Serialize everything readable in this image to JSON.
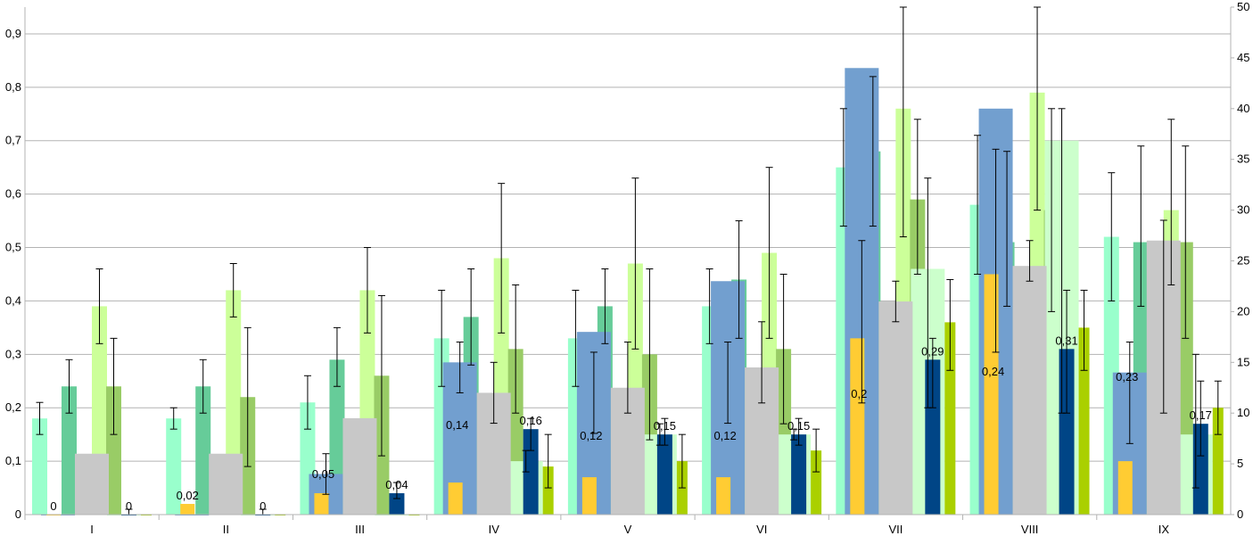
{
  "chart_data": {
    "type": "bar",
    "categories": [
      "I",
      "II",
      "III",
      "IV",
      "V",
      "VI",
      "VII",
      "VIII",
      "IX"
    ],
    "ylim_left": [
      0,
      0.95
    ],
    "ylim_right": [
      0,
      50
    ],
    "y_ticks_left": [
      "0",
      "0,1",
      "0,2",
      "0,3",
      "0,4",
      "0,5",
      "0,6",
      "0,7",
      "0,8",
      "0,9"
    ],
    "y_ticks_right": [
      "0",
      "5",
      "10",
      "15",
      "20",
      "25",
      "30",
      "35",
      "40",
      "45",
      "50"
    ],
    "grid": true,
    "legend": "none",
    "series": [
      {
        "axis": "left",
        "color": "#99ffcc",
        "values": [
          0.18,
          0.18,
          0.21,
          0.33,
          0.33,
          0.39,
          0.65,
          0.58,
          0.52
        ],
        "err_low": [
          0.15,
          0.16,
          0.16,
          0.24,
          0.24,
          0.32,
          0.54,
          0.45,
          0.4
        ],
        "err_high": [
          0.21,
          0.2,
          0.26,
          0.42,
          0.42,
          0.46,
          0.76,
          0.71,
          0.64
        ]
      },
      {
        "axis": "right",
        "color": "#729fcf",
        "values": [
          0,
          0,
          4,
          15,
          18,
          23,
          44,
          40,
          14
        ],
        "err_low": [
          0,
          0,
          2,
          12,
          8,
          9,
          11,
          16,
          7
        ],
        "err_high": [
          0,
          0,
          6,
          17,
          16,
          17,
          27,
          36,
          17
        ]
      },
      {
        "axis": "left",
        "color": "#66cc99",
        "values": [
          0.24,
          0.24,
          0.29,
          0.37,
          0.39,
          0.44,
          0.68,
          0.51,
          0.51
        ],
        "err_low": [
          0.19,
          0.19,
          0.24,
          0.28,
          0.32,
          0.33,
          0.54,
          0.39,
          0.39
        ],
        "err_high": [
          0.29,
          0.29,
          0.35,
          0.46,
          0.46,
          0.55,
          0.82,
          0.68,
          0.69
        ]
      },
      {
        "axis": "right",
        "color": "#c8c8c8",
        "values": [
          6,
          6,
          9.5,
          12,
          12.5,
          14.5,
          21,
          24.5,
          27
        ],
        "err_low": [
          6,
          6,
          9.5,
          9,
          10,
          11,
          19,
          23,
          10
        ],
        "err_high": [
          6,
          6,
          9.5,
          15,
          17,
          19,
          23,
          27,
          29
        ]
      },
      {
        "axis": "left",
        "color": "#ccff99",
        "values": [
          0.39,
          0.42,
          0.42,
          0.48,
          0.47,
          0.49,
          0.76,
          0.79,
          0.57
        ],
        "err_low": [
          0.32,
          0.37,
          0.34,
          0.34,
          0.31,
          0.33,
          0.52,
          0.57,
          0.43
        ],
        "err_high": [
          0.46,
          0.47,
          0.5,
          0.62,
          0.63,
          0.65,
          0.95,
          0.95,
          0.74
        ]
      },
      {
        "axis": "left",
        "color": "#99cc66",
        "values": [
          0.24,
          0.22,
          0.26,
          0.31,
          0.3,
          0.31,
          0.59,
          0.57,
          0.51
        ],
        "err_low": [
          0.15,
          0.09,
          0.11,
          0.19,
          0.14,
          0.17,
          0.45,
          0.38,
          0.33
        ],
        "err_high": [
          0.33,
          0.35,
          0.41,
          0.43,
          0.46,
          0.45,
          0.74,
          0.76,
          0.69
        ]
      },
      {
        "axis": "left",
        "color": "#ffcc33",
        "values": [
          0,
          0.02,
          0.04,
          0.06,
          0.07,
          0.07,
          0.33,
          0.45,
          0.1
        ],
        "err_low": [
          0,
          0.01,
          0.02,
          0.04,
          0.05,
          0.05,
          0.2,
          0.35,
          0.05
        ],
        "err_high": [
          0,
          0.01,
          0.02,
          0.04,
          0.05,
          0.05,
          0.2,
          0.35,
          0.05
        ],
        "labels": [
          "0",
          "0,02",
          "",
          "",
          "",
          "",
          "",
          "",
          ""
        ]
      },
      {
        "axis": "left",
        "color": "#004586",
        "values": [
          0,
          0,
          0.04,
          0.16,
          0.15,
          0.15,
          0.29,
          0.31,
          0.17
        ],
        "err_low": [
          0,
          0,
          0.03,
          0.12,
          0.13,
          0.13,
          0.2,
          0.19,
          0.11
        ],
        "err_high": [
          0.01,
          0.01,
          0.06,
          0.18,
          0.18,
          0.18,
          0.33,
          0.42,
          0.25
        ],
        "labels": [
          "0",
          "0",
          "0,04",
          "0,16",
          "0,15",
          "0,15",
          "0,29",
          "0,31",
          "0,17"
        ]
      },
      {
        "axis": "left",
        "color": "#ccffcc",
        "values": [
          0,
          0,
          0,
          0.1,
          0.15,
          0.15,
          0.46,
          0.7,
          0.15
        ],
        "err_low": [
          0,
          0,
          0,
          0.08,
          0.13,
          0.14,
          0.2,
          0.19,
          0.05
        ],
        "err_high": [
          0,
          0,
          0,
          0.12,
          0.17,
          0.16,
          0.63,
          0.76,
          0.3
        ]
      },
      {
        "axis": "left",
        "color": "#aad000",
        "values": [
          0,
          0,
          0,
          0.09,
          0.1,
          0.12,
          0.36,
          0.35,
          0.2
        ],
        "err_low": [
          0,
          0,
          0,
          0.05,
          0.05,
          0.08,
          0.27,
          0.27,
          0.15
        ],
        "err_high": [
          0,
          0,
          0,
          0.15,
          0.15,
          0.16,
          0.44,
          0.42,
          0.25
        ]
      }
    ],
    "value_labels_left_axis_bars": [
      "",
      "",
      "0,05",
      "0,14",
      "0,12",
      "0,12",
      "0,2",
      "0,24",
      "0,23"
    ]
  }
}
